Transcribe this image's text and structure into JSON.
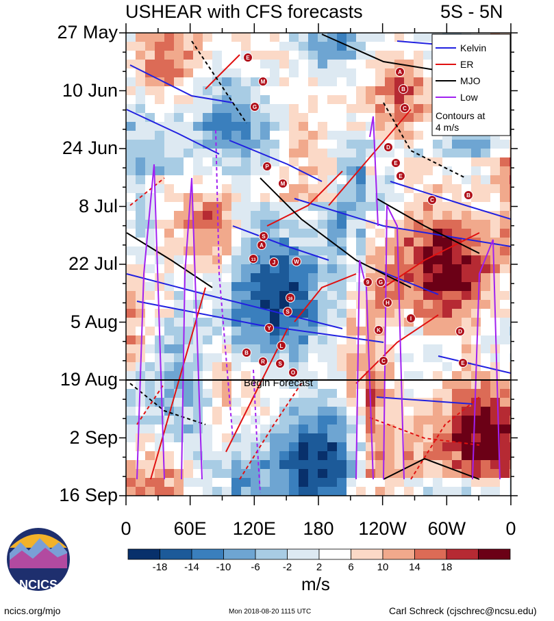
{
  "chart_data": {
    "type": "heatmap",
    "title": "USHEAR with CFS forecasts",
    "region": "5S - 5N",
    "y_ticks": [
      "27 May",
      "10 Jun",
      "24 Jun",
      "8 Jul",
      "22 Jul",
      "5 Aug",
      "19 Aug",
      "2 Sep",
      "16 Sep"
    ],
    "x_ticks": [
      "0",
      "60E",
      "120E",
      "180",
      "120W",
      "60W",
      "0"
    ],
    "forecast_label": "Begin Forecast",
    "colorbar": {
      "unit": "m/s",
      "ticks": [
        "-18",
        "-14",
        "-10",
        "-6",
        "-2",
        "2",
        "6",
        "10",
        "14",
        "18"
      ],
      "colors": [
        "#08306b",
        "#1c5a99",
        "#3a7fbd",
        "#6ea5d2",
        "#a8cce4",
        "#dde9f2",
        "#ffffff",
        "#fbd9c7",
        "#f1a98c",
        "#dc6b56",
        "#b62a33",
        "#6b0016"
      ]
    },
    "legend": {
      "position": "top-right",
      "entries": [
        {
          "name": "Kelvin",
          "color": "#2020e0"
        },
        {
          "name": "ER",
          "color": "#e01010"
        },
        {
          "name": "MJO",
          "color": "#000000"
        },
        {
          "name": "Low",
          "color": "#a020f0"
        }
      ],
      "note_line1": "Contours at",
      "note_line2": "4 m/s"
    },
    "storm_markers": [
      "E",
      "M",
      "G",
      "A",
      "B",
      "C",
      "D",
      "E",
      "E",
      "C",
      "B",
      "P",
      "M",
      "S",
      "A",
      "13",
      "J",
      "W",
      "9",
      "G",
      "H",
      "16",
      "S",
      "I",
      "K",
      "D",
      "Y",
      "L",
      "B",
      "R",
      "S",
      "O",
      "E",
      "C"
    ]
  },
  "logo": {
    "text": "NCICS"
  },
  "footer": {
    "left": "ncics.org/mjo",
    "middle": "Mon 2018-08-20 1115 UTC",
    "right": "Carl Schreck (cjschrec@ncsu.edu)"
  }
}
